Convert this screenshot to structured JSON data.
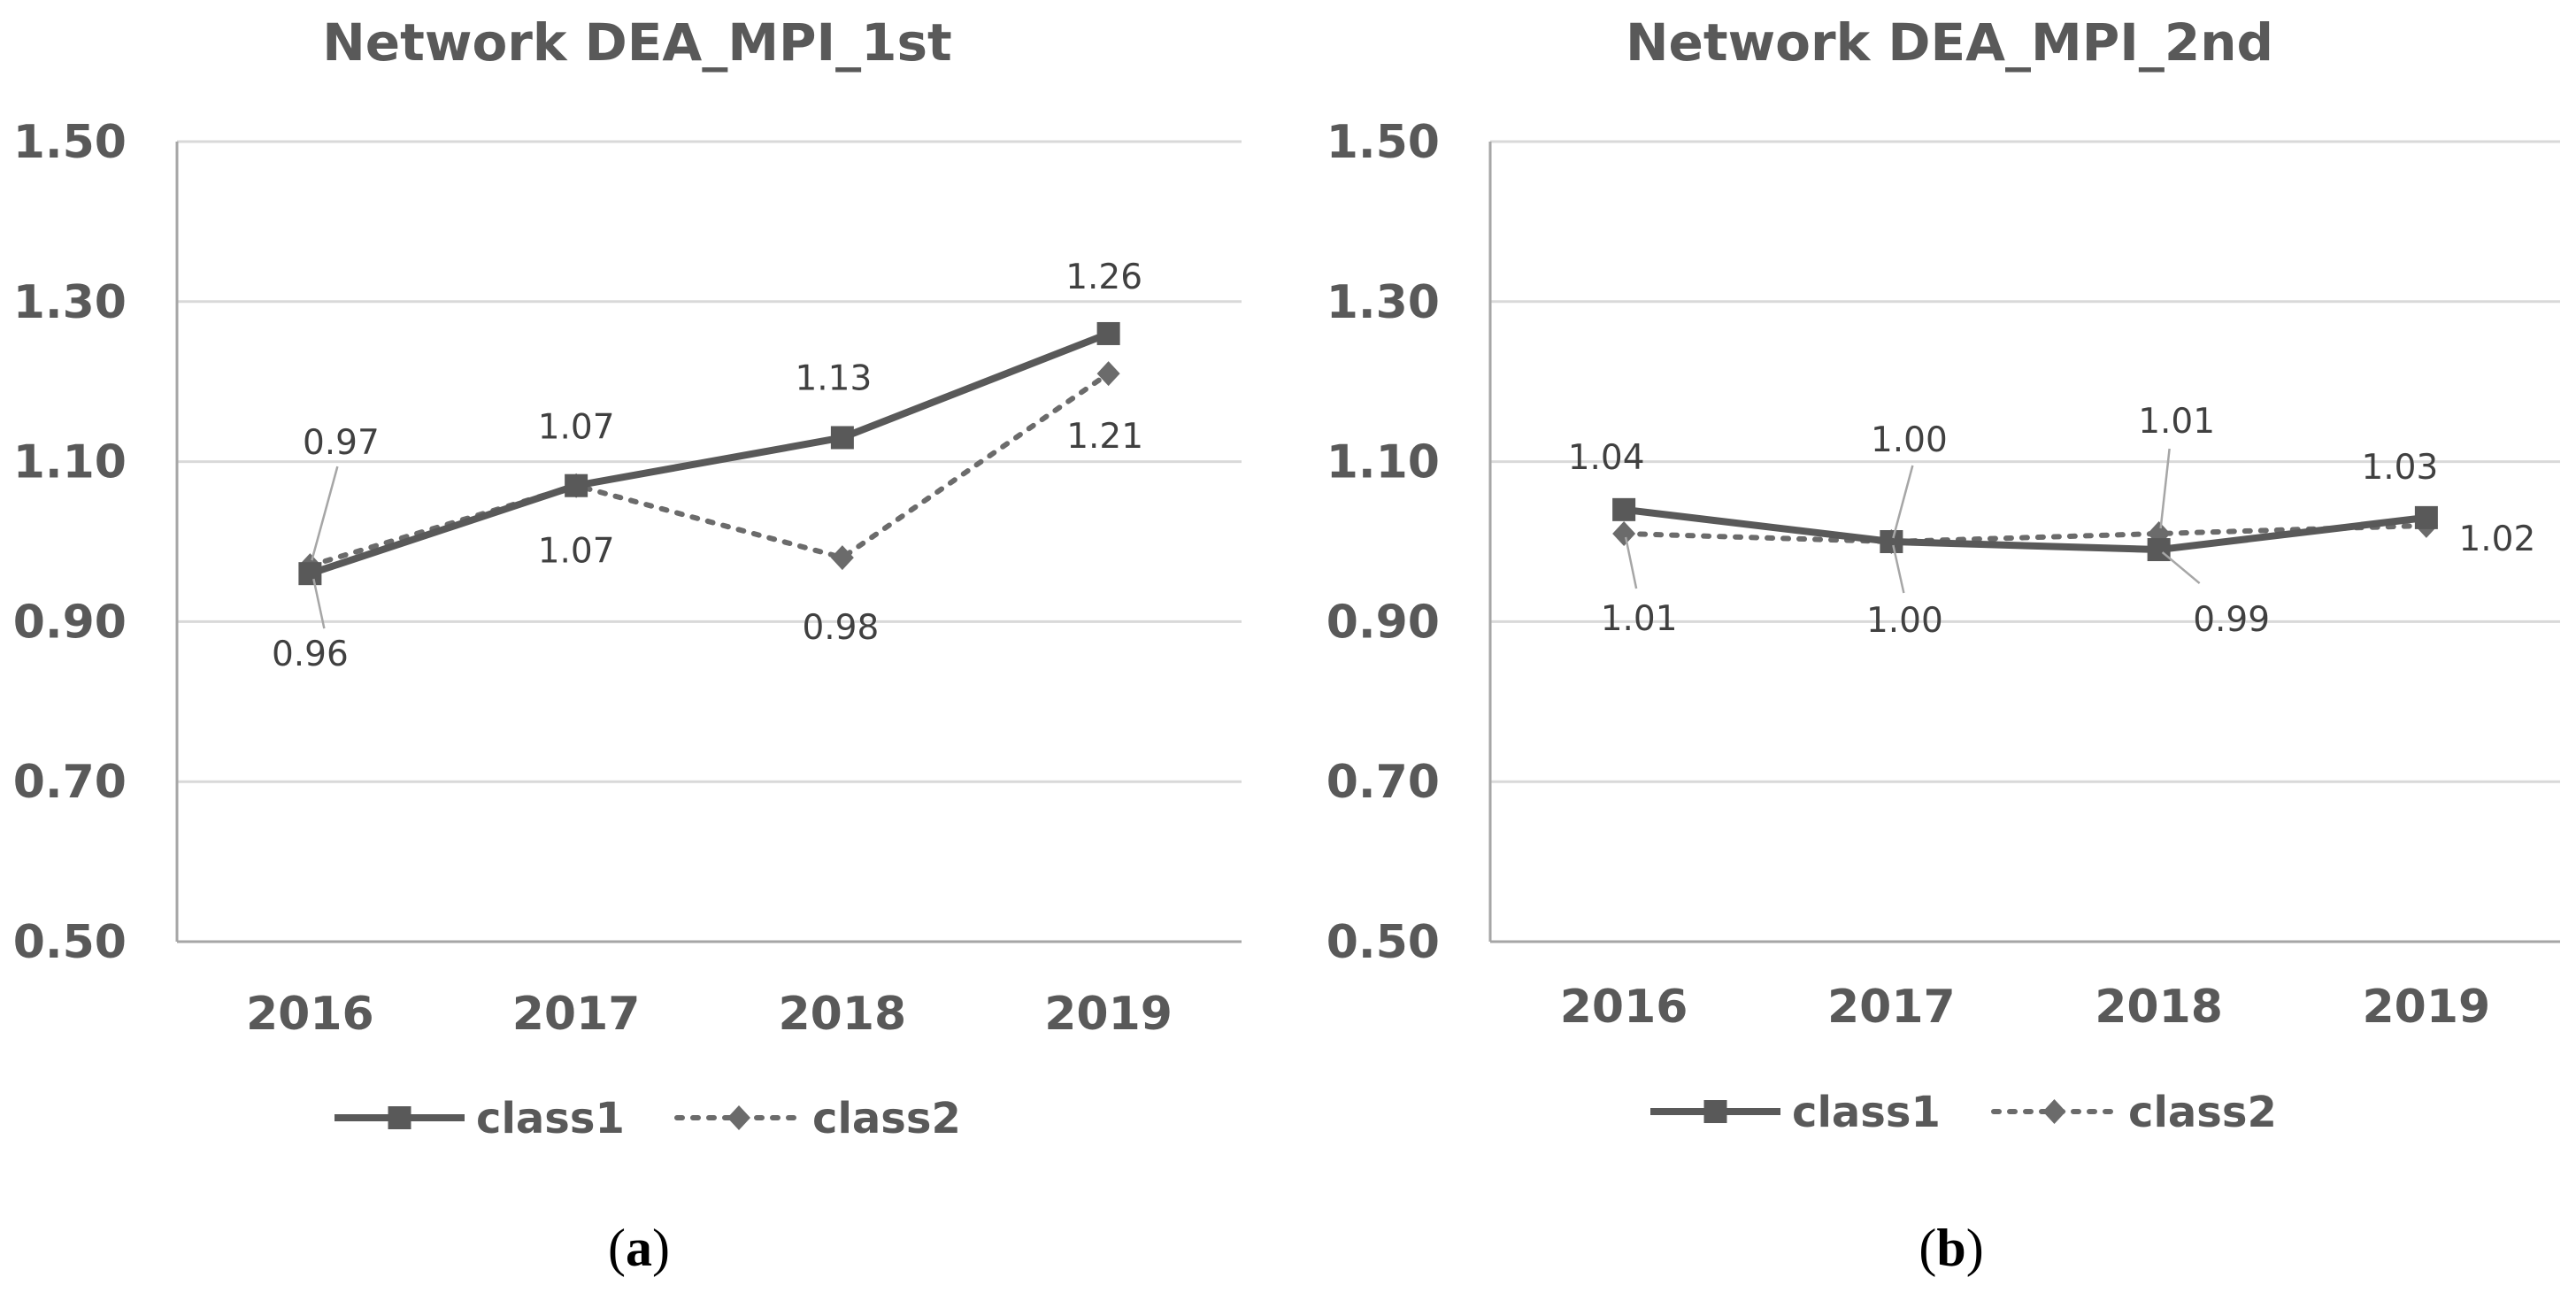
{
  "colors": {
    "class1": "#595959",
    "class2": "#6b6b6b",
    "grid": "#d9d9d9",
    "axis": "#a6a6a6",
    "text": "#595959"
  },
  "chart_data": [
    {
      "type": "line",
      "title": "Network DEA_MPI_1st",
      "caption_letter": "a",
      "categories": [
        "2016",
        "2017",
        "2018",
        "2019"
      ],
      "yticks": [
        "0.50",
        "0.70",
        "0.90",
        "1.10",
        "1.30",
        "1.50"
      ],
      "ylim": [
        0.5,
        1.5
      ],
      "grid": true,
      "legend_position": "bottom",
      "series": [
        {
          "name": "class1",
          "style": "solid",
          "marker": "square",
          "values": [
            0.96,
            1.07,
            1.13,
            1.26
          ],
          "labels": [
            "0.96",
            "1.07",
            "1.13",
            "1.26"
          ]
        },
        {
          "name": "class2",
          "style": "dotted",
          "marker": "diamond",
          "values": [
            0.97,
            1.07,
            0.98,
            1.21
          ],
          "labels": [
            "0.97",
            "1.07",
            "0.98",
            "1.21"
          ]
        }
      ]
    },
    {
      "type": "line",
      "title": "Network DEA_MPI_2nd",
      "caption_letter": "b",
      "categories": [
        "2016",
        "2017",
        "2018",
        "2019"
      ],
      "yticks": [
        "0.50",
        "0.70",
        "0.90",
        "1.10",
        "1.30",
        "1.50"
      ],
      "ylim": [
        0.5,
        1.5
      ],
      "grid": true,
      "legend_position": "bottom",
      "series": [
        {
          "name": "class1",
          "style": "solid",
          "marker": "square",
          "values": [
            1.04,
            1.0,
            0.99,
            1.03
          ],
          "labels": [
            "1.04",
            "1.00",
            "0.99",
            "1.03"
          ]
        },
        {
          "name": "class2",
          "style": "dotted",
          "marker": "diamond",
          "values": [
            1.01,
            1.0,
            1.01,
            1.02
          ],
          "labels": [
            "1.01",
            "1.00",
            "1.01",
            "1.02"
          ]
        }
      ]
    }
  ]
}
